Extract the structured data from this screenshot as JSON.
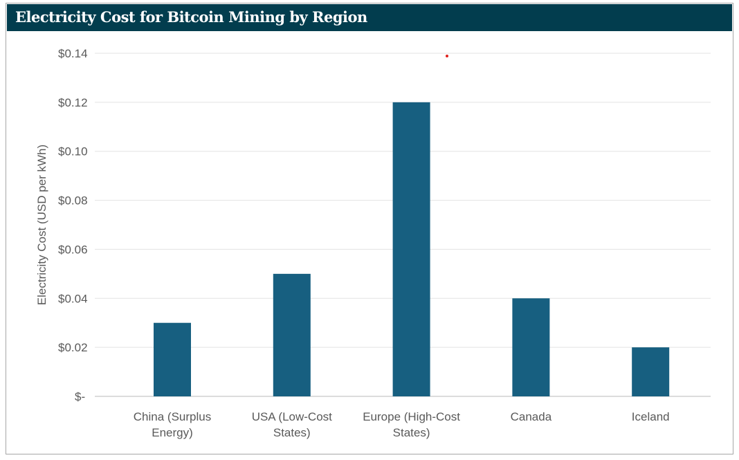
{
  "chart_data": {
    "type": "bar",
    "title": "Electricity Cost for Bitcoin Mining by Region",
    "xlabel": "",
    "ylabel": "Electricity Cost (USD per kWh)",
    "categories": [
      [
        "China (Surplus",
        "Energy)"
      ],
      [
        "USA (Low-Cost",
        "States)"
      ],
      [
        "Europe (High-Cost",
        "States)"
      ],
      [
        "Canada"
      ],
      [
        "Iceland"
      ]
    ],
    "values": [
      0.03,
      0.05,
      0.12,
      0.04,
      0.02
    ],
    "ylim": [
      0,
      0.14
    ],
    "yticks": [
      0,
      0.02,
      0.04,
      0.06,
      0.08,
      0.1,
      0.12,
      0.14
    ],
    "ytick_labels": [
      "$-",
      "$0.02",
      "$0.04",
      "$0.06",
      "$0.08",
      "$0.10",
      "$0.12",
      "$0.14"
    ],
    "grid": true,
    "bar_color": "#175f80",
    "title_bg": "#023d4e"
  }
}
